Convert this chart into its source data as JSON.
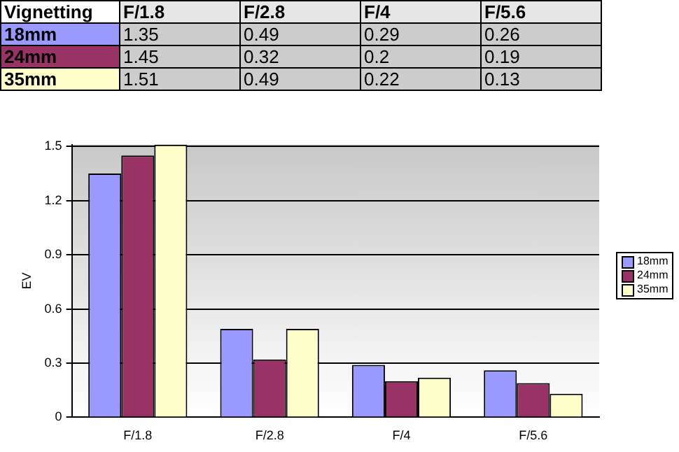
{
  "chart_data": {
    "type": "bar",
    "title": "Vignetting",
    "ylabel": "EV",
    "categories": [
      "F/1.8",
      "F/2.8",
      "F/4",
      "F/5.6"
    ],
    "series": [
      {
        "name": "18mm",
        "color": "#9999ff",
        "values": [
          1.35,
          0.49,
          0.29,
          0.26
        ]
      },
      {
        "name": "24mm",
        "color": "#993366",
        "values": [
          1.45,
          0.32,
          0.2,
          0.19
        ]
      },
      {
        "name": "35mm",
        "color": "#ffffcc",
        "values": [
          1.51,
          0.49,
          0.22,
          0.13
        ]
      }
    ],
    "ylim": [
      0,
      1.51
    ],
    "yticks": [
      0,
      0.3,
      0.6,
      0.9,
      1.2,
      1.5
    ],
    "grid": "y",
    "legend": "right",
    "data_labels": true
  }
}
